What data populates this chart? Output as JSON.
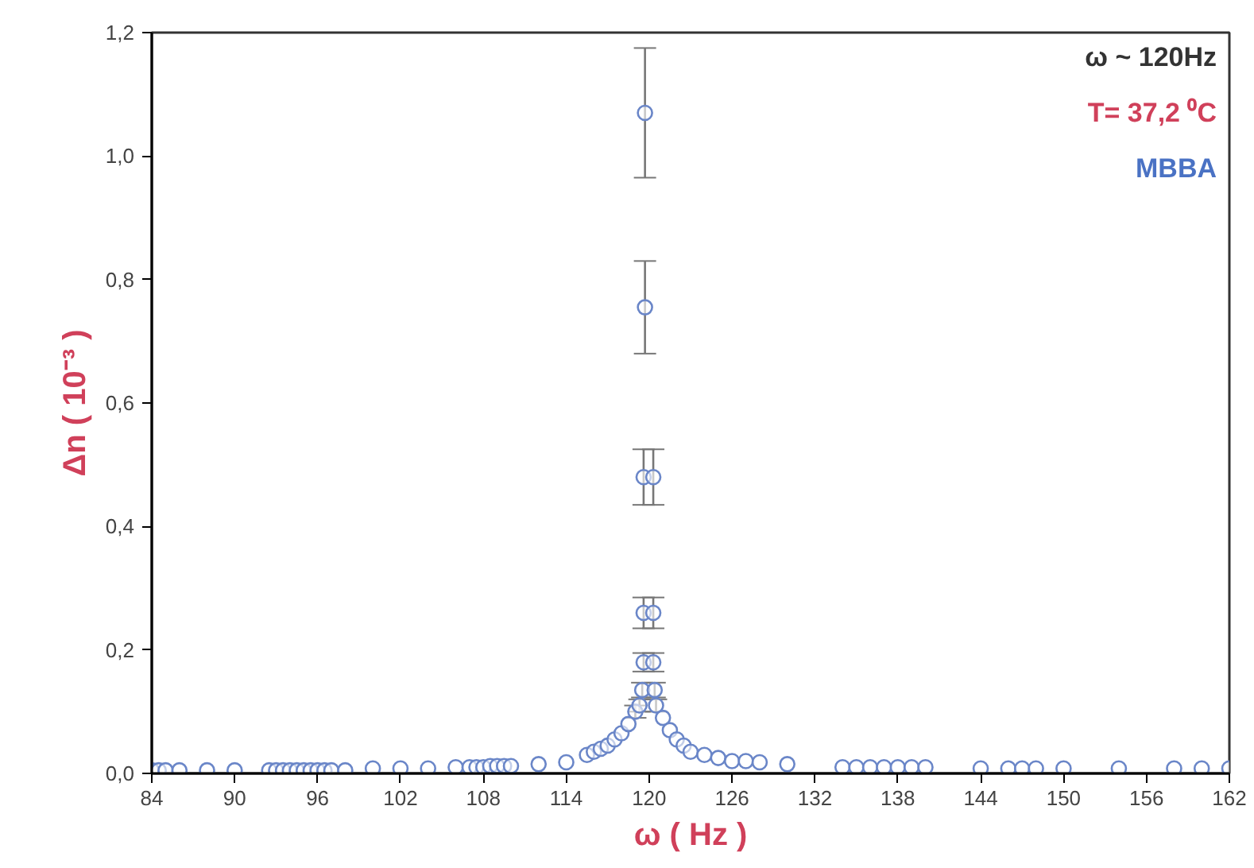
{
  "chart_data": {
    "type": "scatter",
    "xlabel": "ω ( Hz )",
    "ylabel": "Δn ( 10⁻³ )",
    "annotations": [
      "ω ~ 120Hz",
      "T= 37,2 ⁰C",
      "MBBA"
    ],
    "marker": "circle",
    "grid": false,
    "xlim": [
      84,
      162
    ],
    "xticks": [
      84,
      90,
      96,
      102,
      108,
      114,
      120,
      126,
      132,
      138,
      144,
      150,
      156,
      162
    ],
    "ylim": [
      0,
      1.2
    ],
    "yticks": [
      {
        "value": 0,
        "label": "0,0"
      },
      {
        "value": 0.2,
        "label": "0,2"
      },
      {
        "value": 0.4,
        "label": "0,4"
      },
      {
        "value": 0.6,
        "label": "0,6"
      },
      {
        "value": 0.8,
        "label": "0,8"
      },
      {
        "value": 1.0,
        "label": "1,0"
      },
      {
        "value": 1.2,
        "label": "1,2"
      }
    ],
    "series": [
      {
        "color": "#6a86c8",
        "x": [
          84,
          84.5,
          85,
          86,
          88,
          90,
          92.5,
          93,
          93.5,
          94,
          94.5,
          95,
          95.5,
          96,
          96.5,
          97,
          98,
          100,
          102,
          104,
          106,
          107,
          107.5,
          108,
          108.5,
          109,
          109.5,
          110,
          112,
          114,
          115.5,
          116,
          116.5,
          117,
          117.5,
          118,
          118.5,
          119,
          119.3,
          119.5,
          119.6,
          119.6,
          119.6,
          119.7,
          119.7,
          120.3,
          120.3,
          120.3,
          120.4,
          120.5,
          121,
          121.5,
          122,
          122.5,
          123,
          124,
          125,
          126,
          127,
          128,
          130,
          134,
          135,
          136,
          137,
          138,
          139,
          140,
          144,
          146,
          147,
          148,
          150,
          154,
          158,
          160,
          162
        ],
        "values": [
          0.005,
          0.005,
          0.005,
          0.005,
          0.005,
          0.005,
          0.005,
          0.005,
          0.005,
          0.005,
          0.005,
          0.005,
          0.005,
          0.005,
          0.005,
          0.005,
          0.005,
          0.008,
          0.008,
          0.008,
          0.01,
          0.01,
          0.01,
          0.01,
          0.012,
          0.012,
          0.012,
          0.012,
          0.015,
          0.018,
          0.03,
          0.035,
          0.04,
          0.045,
          0.055,
          0.065,
          0.08,
          0.1,
          0.11,
          0.135,
          0.18,
          0.26,
          0.48,
          0.755,
          1.07,
          0.48,
          0.26,
          0.18,
          0.135,
          0.11,
          0.09,
          0.07,
          0.055,
          0.045,
          0.035,
          0.03,
          0.025,
          0.02,
          0.02,
          0.018,
          0.015,
          0.01,
          0.01,
          0.01,
          0.01,
          0.01,
          0.01,
          0.01,
          0.008,
          0.008,
          0.008,
          0.008,
          0.008,
          0.008,
          0.008,
          0.008,
          0.008
        ],
        "errors": [
          null,
          null,
          null,
          null,
          null,
          null,
          null,
          null,
          null,
          null,
          null,
          null,
          null,
          null,
          null,
          null,
          null,
          null,
          null,
          null,
          null,
          null,
          null,
          null,
          null,
          null,
          null,
          null,
          null,
          null,
          null,
          null,
          null,
          null,
          null,
          null,
          null,
          0.01,
          0.01,
          0.012,
          0.015,
          0.025,
          0.045,
          0.075,
          0.105,
          0.045,
          0.025,
          0.015,
          0.012,
          0.01,
          null,
          null,
          null,
          null,
          null,
          null,
          null,
          null,
          null,
          null,
          null,
          null,
          null,
          null,
          null,
          null,
          null,
          null,
          null,
          null,
          null,
          null,
          null,
          null,
          null,
          null,
          null
        ]
      }
    ]
  }
}
